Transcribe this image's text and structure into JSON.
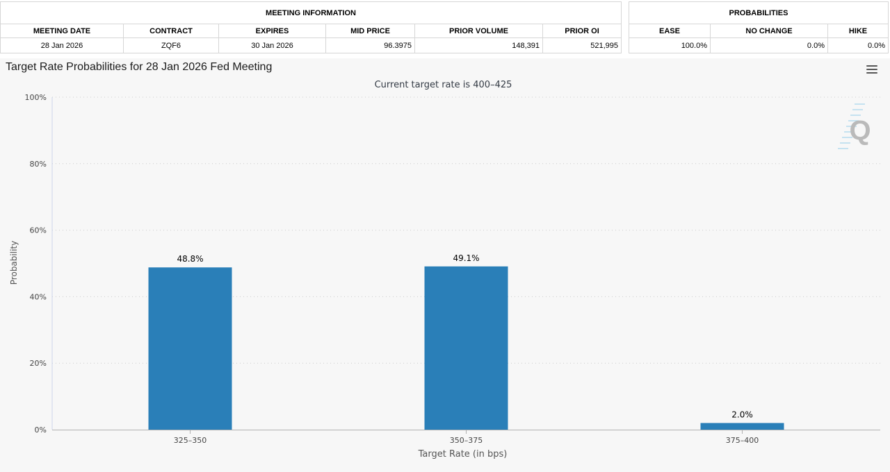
{
  "meeting_info": {
    "group_title": "MEETING INFORMATION",
    "columns": [
      "MEETING DATE",
      "CONTRACT",
      "EXPIRES",
      "MID PRICE",
      "PRIOR VOLUME",
      "PRIOR OI"
    ],
    "row": [
      "28 Jan 2026",
      "ZQF6",
      "30 Jan 2026",
      "96.3975",
      "148,391",
      "521,995"
    ]
  },
  "probabilities": {
    "group_title": "PROBABILITIES",
    "columns": [
      "EASE",
      "NO CHANGE",
      "HIKE"
    ],
    "row": [
      "100.0%",
      "0.0%",
      "0.0%"
    ]
  },
  "menu_icon": "hamburger-menu-icon",
  "watermark_icon": "q-logo-icon",
  "chart_data": {
    "type": "bar",
    "title": "Target Rate Probabilities for 28 Jan 2026 Fed Meeting",
    "subtitle": "Current target rate is 400–425",
    "xlabel": "Target Rate (in bps)",
    "ylabel": "Probability",
    "categories": [
      "325–350",
      "350–375",
      "375–400"
    ],
    "values": [
      48.8,
      49.1,
      2.0
    ],
    "data_labels": [
      "48.8%",
      "49.1%",
      "2.0%"
    ],
    "yticks": [
      "0%",
      "20%",
      "40%",
      "60%",
      "80%",
      "100%"
    ],
    "ylim": [
      0,
      100
    ],
    "grid": true,
    "bar_color": "#2a7fb8"
  }
}
